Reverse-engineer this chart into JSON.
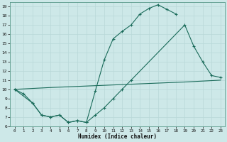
{
  "xlabel": "Humidex (Indice chaleur)",
  "bg_color": "#cde8e8",
  "grid_color": "#b8d8d8",
  "line_color": "#1a6b5a",
  "line1_x": [
    0,
    1,
    2,
    3,
    4,
    5,
    6,
    7,
    8,
    9,
    10,
    11,
    12,
    13,
    14,
    15,
    16,
    17,
    18
  ],
  "line1_y": [
    10.0,
    9.5,
    8.5,
    7.2,
    7.0,
    7.2,
    6.4,
    6.6,
    6.4,
    9.8,
    13.2,
    15.5,
    16.3,
    17.0,
    18.2,
    18.8,
    19.2,
    18.7,
    18.2
  ],
  "line2_x": [
    0,
    2,
    3,
    4,
    5,
    6,
    7,
    8,
    9,
    10,
    11,
    12,
    13,
    19,
    20,
    21,
    22,
    23
  ],
  "line2_y": [
    10.0,
    8.5,
    7.2,
    7.0,
    7.2,
    6.4,
    6.6,
    6.4,
    7.2,
    8.0,
    9.0,
    10.0,
    11.0,
    17.0,
    14.7,
    13.0,
    11.5,
    11.3
  ],
  "line3_x": [
    0,
    4,
    9,
    14,
    19,
    23
  ],
  "line3_y": [
    10.0,
    10.2,
    10.4,
    10.6,
    10.8,
    11.0
  ],
  "ylim": [
    6,
    19.5
  ],
  "xlim": [
    -0.5,
    23.5
  ],
  "yticks": [
    6,
    7,
    8,
    9,
    10,
    11,
    12,
    13,
    14,
    15,
    16,
    17,
    18,
    19
  ],
  "xticks": [
    0,
    1,
    2,
    3,
    4,
    5,
    6,
    7,
    8,
    9,
    10,
    11,
    12,
    13,
    14,
    15,
    16,
    17,
    18,
    19,
    20,
    21,
    22,
    23
  ]
}
